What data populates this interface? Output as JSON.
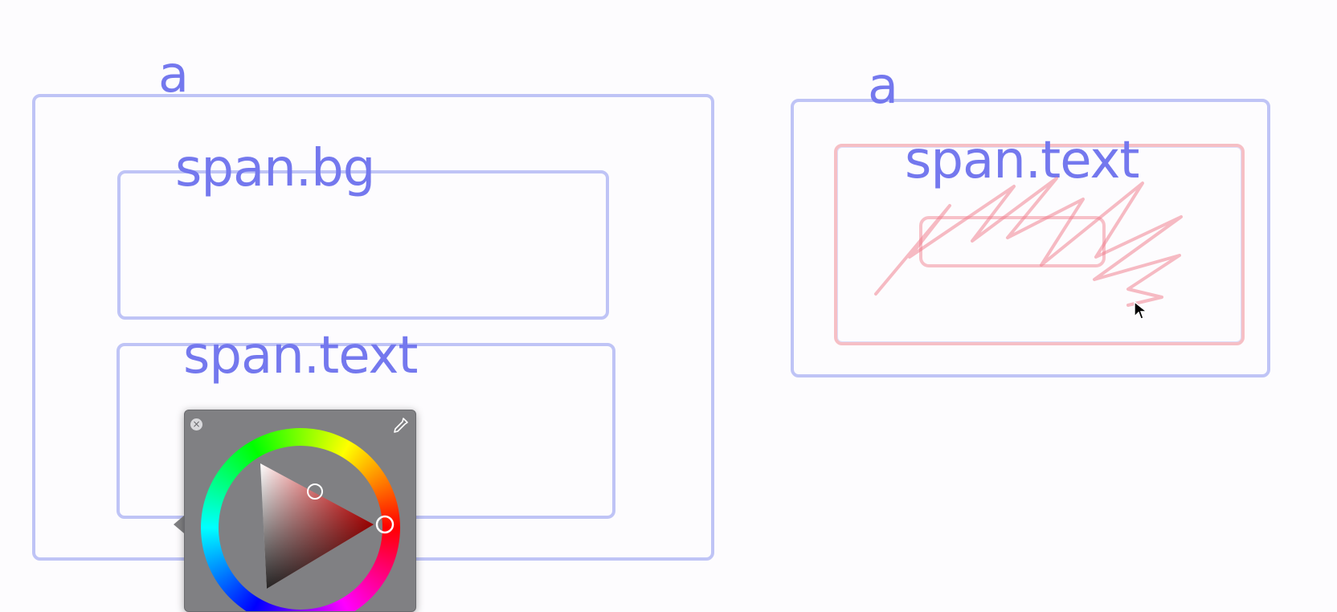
{
  "canvas": {
    "left_outer_label": "a",
    "span_bg_label": "span.bg",
    "span_text_left_label": "span.text",
    "right_outer_label": "a",
    "span_text_right_label": "span.text"
  },
  "colors": {
    "box_border": "#969ef0",
    "label_text": "#7478ee",
    "scribble": "#f08c96",
    "picker_background": "#808083"
  },
  "color_picker": {
    "close_symbol": "×",
    "icons": [
      "close-icon",
      "eyedropper-icon"
    ],
    "selected_hue": "#ff0000"
  }
}
